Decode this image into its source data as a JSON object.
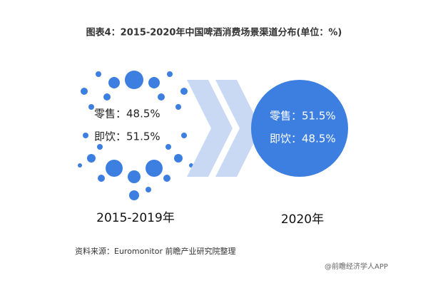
{
  "title": "图表4：2015-2020年中国啤酒消费场景渠道分布(单位：%)",
  "panels": [
    {
      "period": "2015-2019年",
      "lines": [
        "零售：48.5%",
        "即饮：51.5%"
      ]
    },
    {
      "period": "2020年",
      "lines": [
        "零售：51.5%",
        "即饮：48.5%"
      ]
    }
  ],
  "source": "资料来源：Euromonitor 前瞻产业研究院整理",
  "credit": "@前瞻经济学人APP"
}
